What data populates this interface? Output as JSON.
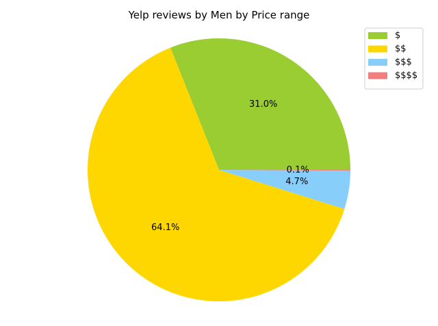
{
  "chart_data": {
    "type": "pie",
    "title": "Yelp reviews by Men by Price range",
    "labels": [
      "$",
      "$$",
      "$$$",
      "$$$$"
    ],
    "values": [
      31.0,
      64.1,
      4.7,
      0.1
    ],
    "autopct_labels": [
      "31.0%",
      "64.1%",
      "4.7%",
      "0.1%"
    ],
    "colors": [
      "#9acd32",
      "#ffd700",
      "#87cefa",
      "#f08080"
    ],
    "start_angle_deg": 0,
    "direction": "counterclockwise",
    "legend": {
      "placement": "top-right"
    }
  }
}
